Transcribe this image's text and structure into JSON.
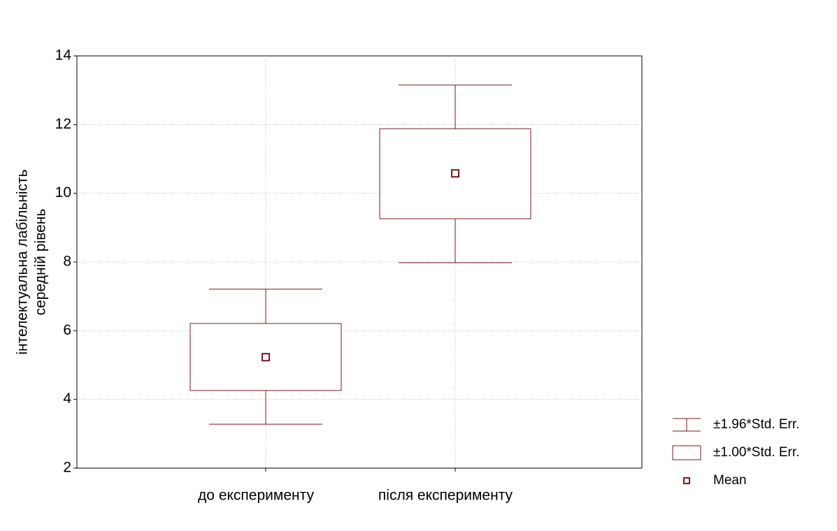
{
  "chart_data": {
    "type": "box",
    "ylabel": [
      "інтелектуальна лабільність",
      "середній рівень"
    ],
    "categories": [
      "до експерименту",
      "після експерименту"
    ],
    "mean": [
      5.23,
      10.58
    ],
    "box_low": [
      4.26,
      9.26
    ],
    "box_high": [
      6.21,
      11.88
    ],
    "whisker_low": [
      3.28,
      7.98
    ],
    "whisker_high": [
      7.21,
      13.15
    ],
    "color": "#7a1a1a",
    "ylim": [
      2,
      14
    ],
    "yticks": [
      2,
      4,
      6,
      8,
      10,
      12,
      14
    ],
    "grid": true,
    "legend_labels": [
      "±1.96*Std. Err.",
      "±1.00*Std. Err.",
      "Mean"
    ],
    "legend": "right"
  }
}
